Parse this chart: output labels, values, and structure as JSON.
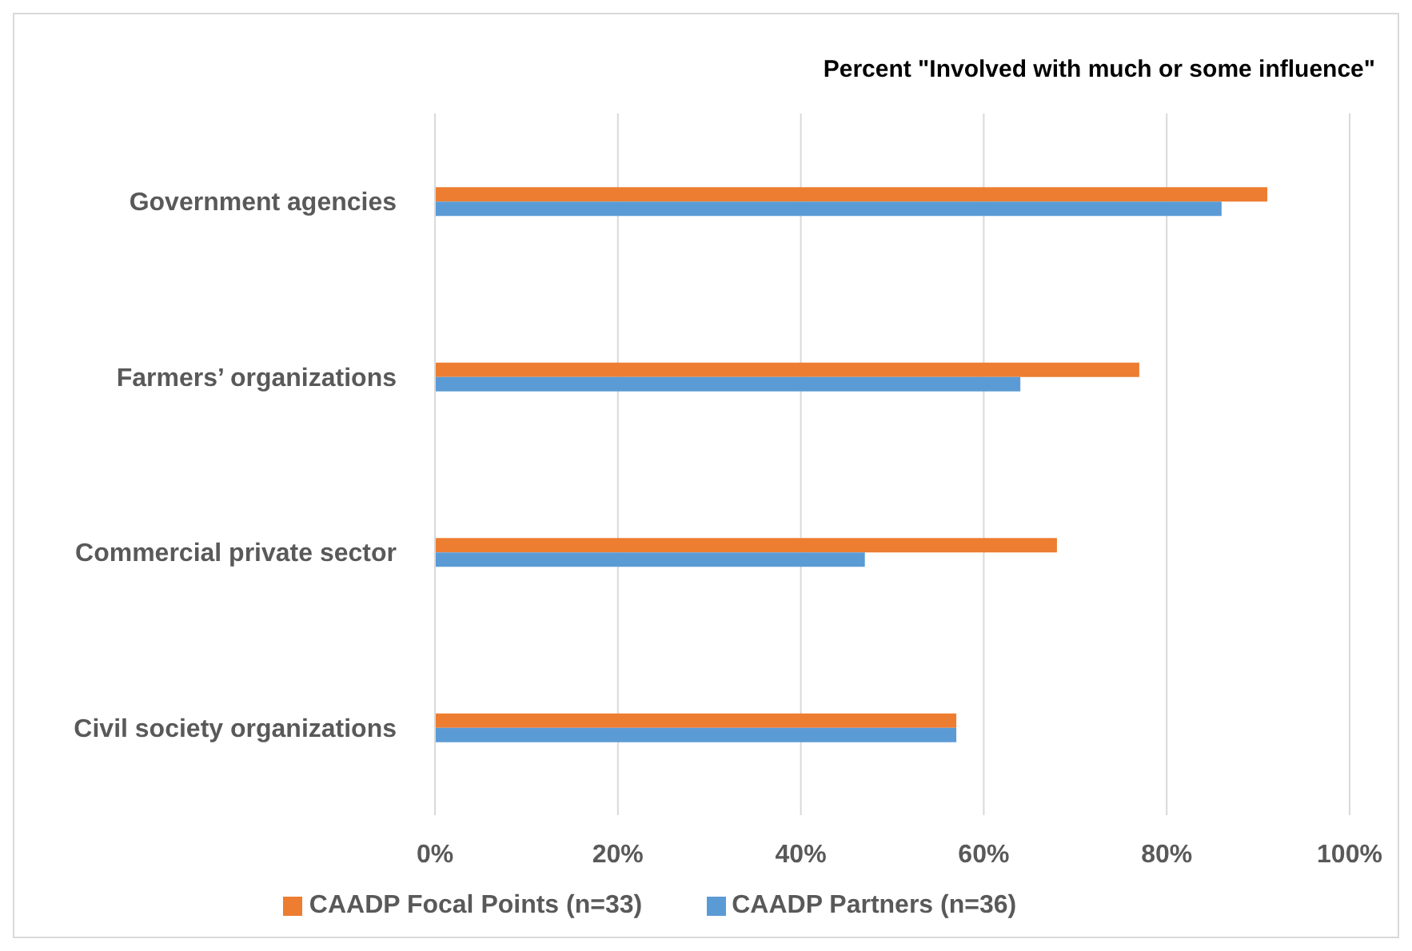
{
  "chart_data": {
    "type": "bar",
    "orientation": "horizontal",
    "title": "Percent \"Involved with much or some influence\"",
    "categories": [
      "Government agencies",
      "Farmers’ organizations",
      "Commercial private sector",
      "Civil society organizations"
    ],
    "series": [
      {
        "name": "CAADP Focal Points (n=33)",
        "color": "#ed7d31",
        "values": [
          91,
          77,
          68,
          57
        ]
      },
      {
        "name": "CAADP Partners (n=36)",
        "color": "#5b9bd5",
        "values": [
          86,
          64,
          47,
          57
        ]
      }
    ],
    "xlim": [
      0,
      100
    ],
    "xticks": [
      {
        "value": 0,
        "label": "0%"
      },
      {
        "value": 20,
        "label": "20%"
      },
      {
        "value": 40,
        "label": "40%"
      },
      {
        "value": 60,
        "label": "60%"
      },
      {
        "value": 80,
        "label": "80%"
      },
      {
        "value": 100,
        "label": "100%"
      }
    ],
    "grid": "x",
    "legend": "bottom"
  }
}
